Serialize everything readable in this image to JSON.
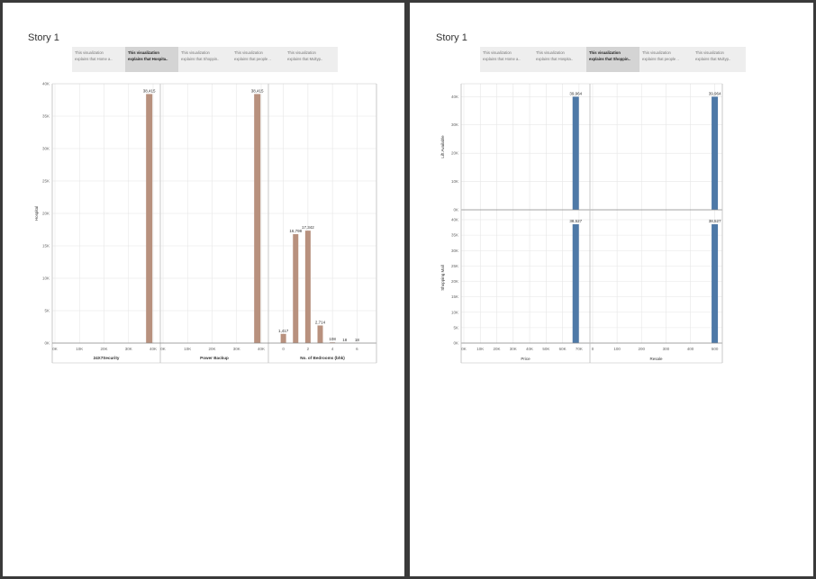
{
  "panels": [
    {
      "title": "Story 1",
      "tabs": [
        {
          "line1": "This visualization",
          "line2": "explains that Home a..",
          "active": false
        },
        {
          "line1": "This visualization",
          "line2": "explains that Hospita..",
          "active": true
        },
        {
          "line1": "This visualization",
          "line2": "explains that Shoppin..",
          "active": false
        },
        {
          "line1": "This visualization",
          "line2": "explains that people ..",
          "active": false
        },
        {
          "line1": "This visualization",
          "line2": "explains that Multyp..",
          "active": false
        }
      ]
    },
    {
      "title": "Story 1",
      "tabs": [
        {
          "line1": "This visualization",
          "line2": "explains that Home a..",
          "active": false
        },
        {
          "line1": "This visualization",
          "line2": "explains that Hospita..",
          "active": false
        },
        {
          "line1": "This visualization",
          "line2": "explains that Shoppin..",
          "active": true
        },
        {
          "line1": "This visualization",
          "line2": "explains that people ..",
          "active": false
        },
        {
          "line1": "This visualization",
          "line2": "explains that Multyp..",
          "active": false
        }
      ]
    }
  ],
  "chart_data": [
    {
      "type": "bar",
      "ylabel": "Hospital",
      "ylim": [
        0,
        40000
      ],
      "yticks": [
        0,
        5000,
        10000,
        15000,
        20000,
        25000,
        30000,
        35000,
        40000
      ],
      "yticklabels": [
        "0K",
        "5K",
        "10K",
        "15K",
        "20K",
        "25K",
        "30K",
        "35K",
        "40K"
      ],
      "grid": true,
      "color": "#b8917e",
      "facets": [
        {
          "xlabel": "24X7Security",
          "xlim": [
            0,
            40000
          ],
          "xticks": [
            0,
            10000,
            20000,
            30000,
            40000
          ],
          "xticklabels": [
            "0K",
            "10K",
            "20K",
            "30K",
            "40K"
          ],
          "bars": [
            {
              "x": 38415,
              "y": 38415,
              "label": "38,415"
            }
          ]
        },
        {
          "xlabel": "Power Backup",
          "xlim": [
            0,
            40000
          ],
          "xticks": [
            0,
            10000,
            20000,
            30000,
            40000
          ],
          "xticklabels": [
            "0K",
            "10K",
            "20K",
            "30K",
            "40K"
          ],
          "bars": [
            {
              "x": 38415,
              "y": 38415,
              "label": "38,415"
            }
          ]
        },
        {
          "xlabel": "No. of Bedrooms (bhk)",
          "xlim": [
            -1,
            7
          ],
          "xticks": [
            0,
            2,
            4,
            6
          ],
          "xticklabels": [
            "0",
            "2",
            "4",
            "6"
          ],
          "bars": [
            {
              "x": 0,
              "y": 1417,
              "label": "1,417"
            },
            {
              "x": 1,
              "y": 16798,
              "label": "16,798"
            },
            {
              "x": 2,
              "y": 17342,
              "label": "17,342"
            },
            {
              "x": 3,
              "y": 2714,
              "label": "2,714"
            },
            {
              "x": 4,
              "y": 108,
              "label": "108"
            },
            {
              "x": 5,
              "y": 18,
              "label": "18"
            },
            {
              "x": 6,
              "y": 18,
              "label": "18"
            }
          ]
        }
      ]
    },
    {
      "type": "bar",
      "color": "#4e79a7",
      "grid": true,
      "columns": [
        {
          "xlabel": "Price",
          "xlim": [
            0,
            75
          ],
          "xticks": [
            0,
            10,
            20,
            30,
            40,
            50,
            60,
            70
          ],
          "xticklabels": [
            "0K",
            "10K",
            "20K",
            "30K",
            "40K",
            "50K",
            "60K",
            "70K"
          ]
        },
        {
          "xlabel": "Resale",
          "xlim": [
            0,
            520
          ],
          "xticks": [
            0,
            100,
            200,
            300,
            400,
            500
          ],
          "xticklabels": [
            "0",
            "100",
            "200",
            "300",
            "400",
            "500"
          ]
        }
      ],
      "rows": [
        {
          "ylabel": "Lift Available",
          "ylim": [
            0,
            42000
          ],
          "yticks": [
            0,
            10000,
            20000,
            30000,
            40000
          ],
          "yticklabels": [
            "0K",
            "10K",
            "20K",
            "30K",
            "40K"
          ],
          "bars": [
            [
              {
                "x": 68,
                "y": 39964,
                "label": "39,964"
              }
            ],
            [
              {
                "x": 500,
                "y": 39964,
                "label": "39,964"
              }
            ]
          ]
        },
        {
          "ylabel": "Shopping Mall",
          "ylim": [
            0,
            40000
          ],
          "yticks": [
            0,
            5000,
            10000,
            15000,
            20000,
            25000,
            30000,
            35000,
            40000
          ],
          "yticklabels": [
            "0K",
            "5K",
            "10K",
            "15K",
            "20K",
            "25K",
            "30K",
            "35K",
            "40K"
          ],
          "bars": [
            [
              {
                "x": 68,
                "y": 38527,
                "label": "38,527"
              }
            ],
            [
              {
                "x": 500,
                "y": 38527,
                "label": "38,527"
              }
            ]
          ]
        }
      ]
    }
  ]
}
